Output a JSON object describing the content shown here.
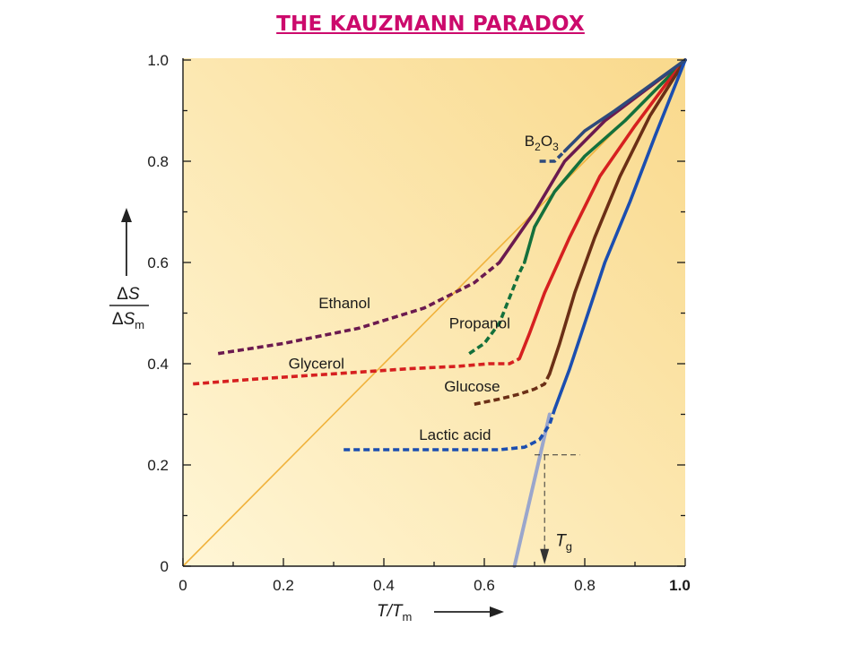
{
  "title": "THE KAUZMANN PARADOX",
  "colors": {
    "title": "#cc0a6c",
    "bg_light": "#fff6d6",
    "bg_dark": "#f9d98c",
    "ethanol": "#6b1a4f",
    "propanol": "#14703c",
    "glycerol": "#d62020",
    "glucose": "#6b2f16",
    "lactic_acid": "#1b4eb0",
    "b2o3": "#2e4a7c",
    "diagonal": "#f0b23c",
    "glass_line": "#9aa6cc",
    "tg_guide": "#333333",
    "highlight_tick": "#2a4fa8"
  },
  "chart_data": {
    "type": "line",
    "title": "THE KAUZMANN PARADOX",
    "xlabel": {
      "main": "T/T",
      "sub": "m"
    },
    "ylabel": {
      "num": "ΔS",
      "den": "ΔS",
      "den_sub": "m"
    },
    "xlim": [
      0,
      1.0
    ],
    "ylim": [
      0,
      1.0
    ],
    "x_ticks": [
      {
        "value": 0,
        "label": "0"
      },
      {
        "value": 0.2,
        "label": "0.2"
      },
      {
        "value": 0.4,
        "label": "0.4"
      },
      {
        "value": 0.6,
        "label": "0.6"
      },
      {
        "value": 0.8,
        "label": "0.8"
      },
      {
        "value": 1.0,
        "label": "1.0",
        "highlight": true
      }
    ],
    "y_ticks": [
      {
        "value": 0,
        "label": "0"
      },
      {
        "value": 0.2,
        "label": "0.2"
      },
      {
        "value": 0.4,
        "label": "0.4"
      },
      {
        "value": 0.6,
        "label": "0.6"
      },
      {
        "value": 0.8,
        "label": "0.8"
      },
      {
        "value": 1.0,
        "label": "1.0"
      }
    ],
    "grid": false,
    "reference_line": {
      "x": [
        0,
        1.0
      ],
      "y": [
        0,
        1.0
      ]
    },
    "glass_transition": {
      "label": "T",
      "label_sub": "g",
      "tg_x": 0.72,
      "tg_y": 0.22,
      "extrapolation": {
        "x": [
          0.66,
          0.73
        ],
        "y": [
          0.0,
          0.3
        ]
      }
    },
    "series": [
      {
        "name": "Ethanol",
        "key": "ethanol",
        "label_at": [
          0.27,
          0.51
        ],
        "solid": [
          [
            0.63,
            0.6
          ],
          [
            0.7,
            0.7
          ],
          [
            0.76,
            0.8
          ],
          [
            0.84,
            0.88
          ],
          [
            0.92,
            0.94
          ],
          [
            1.0,
            1.0
          ]
        ],
        "dashed": [
          [
            0.07,
            0.42
          ],
          [
            0.2,
            0.44
          ],
          [
            0.35,
            0.47
          ],
          [
            0.48,
            0.51
          ],
          [
            0.58,
            0.56
          ],
          [
            0.63,
            0.6
          ]
        ]
      },
      {
        "name": "Propanol",
        "key": "propanol",
        "label_at": [
          0.53,
          0.47
        ],
        "solid": [
          [
            0.68,
            0.6
          ],
          [
            0.7,
            0.67
          ],
          [
            0.74,
            0.74
          ],
          [
            0.8,
            0.81
          ],
          [
            0.88,
            0.88
          ],
          [
            0.94,
            0.94
          ],
          [
            1.0,
            1.0
          ]
        ],
        "dashed": [
          [
            0.57,
            0.42
          ],
          [
            0.6,
            0.44
          ],
          [
            0.63,
            0.48
          ],
          [
            0.65,
            0.53
          ],
          [
            0.67,
            0.58
          ],
          [
            0.68,
            0.6
          ]
        ]
      },
      {
        "name": "Glycerol",
        "key": "glycerol",
        "label_at": [
          0.21,
          0.39
        ],
        "solid": [
          [
            0.67,
            0.41
          ],
          [
            0.69,
            0.46
          ],
          [
            0.72,
            0.54
          ],
          [
            0.77,
            0.65
          ],
          [
            0.83,
            0.77
          ],
          [
            0.9,
            0.87
          ],
          [
            0.96,
            0.95
          ],
          [
            1.0,
            1.0
          ]
        ],
        "dashed": [
          [
            0.02,
            0.36
          ],
          [
            0.15,
            0.37
          ],
          [
            0.3,
            0.38
          ],
          [
            0.45,
            0.39
          ],
          [
            0.55,
            0.395
          ],
          [
            0.61,
            0.4
          ],
          [
            0.65,
            0.4
          ],
          [
            0.67,
            0.41
          ]
        ]
      },
      {
        "name": "Glucose",
        "key": "glucose",
        "label_at": [
          0.52,
          0.345
        ],
        "solid": [
          [
            0.73,
            0.38
          ],
          [
            0.75,
            0.44
          ],
          [
            0.78,
            0.54
          ],
          [
            0.82,
            0.65
          ],
          [
            0.87,
            0.77
          ],
          [
            0.93,
            0.89
          ],
          [
            1.0,
            1.0
          ]
        ],
        "dashed": [
          [
            0.58,
            0.32
          ],
          [
            0.63,
            0.33
          ],
          [
            0.67,
            0.34
          ],
          [
            0.7,
            0.35
          ],
          [
            0.72,
            0.36
          ],
          [
            0.73,
            0.38
          ]
        ]
      },
      {
        "name": "Lactic acid",
        "key": "lactic_acid",
        "label_at": [
          0.47,
          0.25
        ],
        "solid": [
          [
            0.74,
            0.31
          ],
          [
            0.77,
            0.39
          ],
          [
            0.8,
            0.48
          ],
          [
            0.84,
            0.6
          ],
          [
            0.89,
            0.72
          ],
          [
            0.94,
            0.85
          ],
          [
            1.0,
            1.0
          ]
        ],
        "dashed": [
          [
            0.32,
            0.23
          ],
          [
            0.45,
            0.23
          ],
          [
            0.55,
            0.23
          ],
          [
            0.63,
            0.23
          ],
          [
            0.68,
            0.235
          ],
          [
            0.71,
            0.25
          ],
          [
            0.73,
            0.28
          ],
          [
            0.74,
            0.31
          ]
        ]
      },
      {
        "name": "B2O3",
        "label_parts": [
          {
            "text": "B",
            "sub": false
          },
          {
            "text": "2",
            "sub": true
          },
          {
            "text": "O",
            "sub": false
          },
          {
            "text": "3",
            "sub": true
          }
        ],
        "key": "b2o3",
        "label_at": [
          0.68,
          0.83
        ],
        "solid": [
          [
            0.76,
            0.82
          ],
          [
            0.8,
            0.86
          ],
          [
            0.86,
            0.9
          ],
          [
            0.93,
            0.95
          ],
          [
            1.0,
            1.0
          ]
        ],
        "dashed": [
          [
            0.71,
            0.8
          ],
          [
            0.74,
            0.8
          ],
          [
            0.76,
            0.82
          ]
        ]
      }
    ]
  }
}
